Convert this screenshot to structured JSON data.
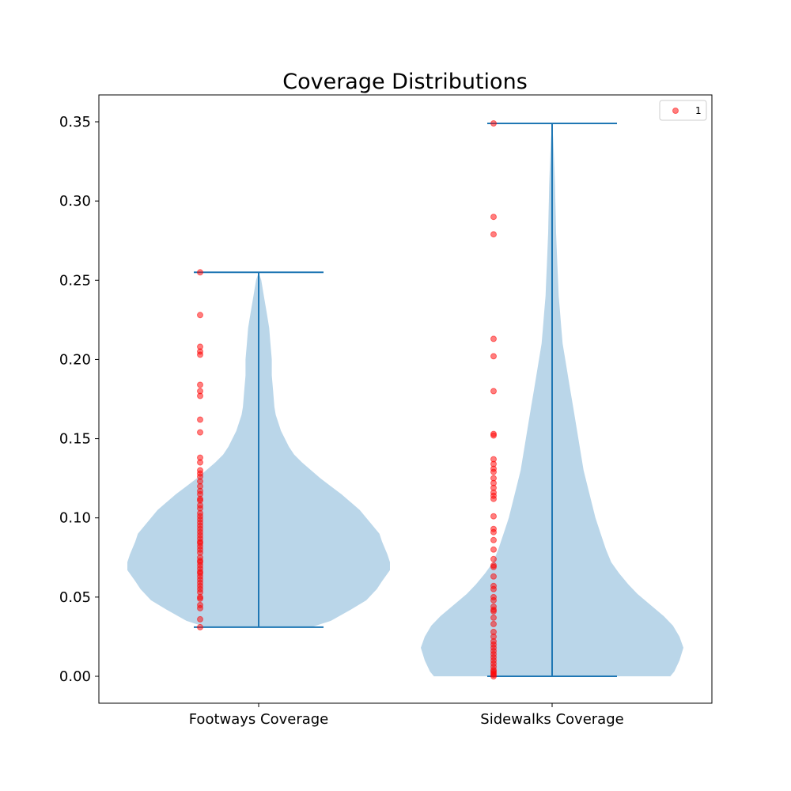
{
  "chart_data": {
    "type": "violin",
    "title": "Coverage Distributions",
    "xlabel": "",
    "ylabel": "",
    "ylim": [
      -0.017,
      0.365
    ],
    "yticks": [
      0.0,
      0.05,
      0.1,
      0.15,
      0.2,
      0.25,
      0.3,
      0.35
    ],
    "ytick_labels": [
      "0.00",
      "0.05",
      "0.10",
      "0.15",
      "0.20",
      "0.25",
      "0.30",
      "0.35"
    ],
    "categories": [
      "Footways Coverage",
      "Sidewalks Coverage"
    ],
    "colors": {
      "violin_fill": "#bad6e9",
      "violin_lines": "#1f77b4",
      "points": "#ff0000"
    },
    "legend": {
      "position": "top-right",
      "entries": [
        {
          "label": "1",
          "marker": "red circle"
        }
      ]
    },
    "violins": [
      {
        "name": "Footways Coverage",
        "min": 0.031,
        "max": 0.255,
        "density_profile": [
          [
            0.031,
            0.4
          ],
          [
            0.035,
            0.55
          ],
          [
            0.042,
            0.7
          ],
          [
            0.048,
            0.82
          ],
          [
            0.055,
            0.9
          ],
          [
            0.06,
            0.94
          ],
          [
            0.067,
            1.0
          ],
          [
            0.072,
            1.0
          ],
          [
            0.077,
            0.98
          ],
          [
            0.085,
            0.94
          ],
          [
            0.09,
            0.92
          ],
          [
            0.095,
            0.87
          ],
          [
            0.1,
            0.82
          ],
          [
            0.105,
            0.77
          ],
          [
            0.11,
            0.7
          ],
          [
            0.115,
            0.63
          ],
          [
            0.12,
            0.55
          ],
          [
            0.125,
            0.47
          ],
          [
            0.13,
            0.4
          ],
          [
            0.135,
            0.33
          ],
          [
            0.14,
            0.27
          ],
          [
            0.145,
            0.23
          ],
          [
            0.15,
            0.2
          ],
          [
            0.155,
            0.17
          ],
          [
            0.16,
            0.15
          ],
          [
            0.165,
            0.13
          ],
          [
            0.17,
            0.12
          ],
          [
            0.18,
            0.11
          ],
          [
            0.19,
            0.1
          ],
          [
            0.2,
            0.1
          ],
          [
            0.21,
            0.09
          ],
          [
            0.22,
            0.08
          ],
          [
            0.23,
            0.06
          ],
          [
            0.24,
            0.04
          ],
          [
            0.25,
            0.02
          ],
          [
            0.255,
            0.0
          ]
        ]
      },
      {
        "name": "Sidewalks Coverage",
        "min": 0.0,
        "max": 0.349,
        "density_profile": [
          [
            0.0,
            0.9
          ],
          [
            0.003,
            0.93
          ],
          [
            0.01,
            0.97
          ],
          [
            0.018,
            1.0
          ],
          [
            0.025,
            0.97
          ],
          [
            0.032,
            0.92
          ],
          [
            0.038,
            0.85
          ],
          [
            0.045,
            0.75
          ],
          [
            0.052,
            0.65
          ],
          [
            0.058,
            0.58
          ],
          [
            0.065,
            0.51
          ],
          [
            0.072,
            0.45
          ],
          [
            0.08,
            0.41
          ],
          [
            0.09,
            0.37
          ],
          [
            0.1,
            0.33
          ],
          [
            0.11,
            0.3
          ],
          [
            0.12,
            0.27
          ],
          [
            0.13,
            0.24
          ],
          [
            0.14,
            0.22
          ],
          [
            0.15,
            0.2
          ],
          [
            0.16,
            0.18
          ],
          [
            0.17,
            0.16
          ],
          [
            0.18,
            0.14
          ],
          [
            0.19,
            0.12
          ],
          [
            0.2,
            0.1
          ],
          [
            0.21,
            0.08
          ],
          [
            0.22,
            0.07
          ],
          [
            0.23,
            0.06
          ],
          [
            0.24,
            0.05
          ],
          [
            0.25,
            0.045
          ],
          [
            0.26,
            0.04
          ],
          [
            0.27,
            0.035
          ],
          [
            0.28,
            0.03
          ],
          [
            0.29,
            0.028
          ],
          [
            0.3,
            0.025
          ],
          [
            0.31,
            0.022
          ],
          [
            0.32,
            0.018
          ],
          [
            0.33,
            0.013
          ],
          [
            0.34,
            0.008
          ],
          [
            0.349,
            0.0
          ]
        ]
      }
    ],
    "points": [
      {
        "category": "Footways Coverage",
        "values": [
          0.031,
          0.036,
          0.043,
          0.045,
          0.049,
          0.05,
          0.053,
          0.055,
          0.057,
          0.059,
          0.061,
          0.063,
          0.065,
          0.066,
          0.068,
          0.07,
          0.072,
          0.073,
          0.075,
          0.078,
          0.08,
          0.082,
          0.084,
          0.085,
          0.087,
          0.089,
          0.091,
          0.093,
          0.095,
          0.097,
          0.099,
          0.101,
          0.103,
          0.106,
          0.108,
          0.111,
          0.112,
          0.115,
          0.117,
          0.12,
          0.123,
          0.126,
          0.128,
          0.13,
          0.135,
          0.138,
          0.154,
          0.162,
          0.177,
          0.18,
          0.184,
          0.203,
          0.205,
          0.208,
          0.228,
          0.255
        ]
      },
      {
        "category": "Sidewalks Coverage",
        "values": [
          0.0,
          0.001,
          0.002,
          0.003,
          0.004,
          0.006,
          0.008,
          0.01,
          0.012,
          0.014,
          0.016,
          0.018,
          0.02,
          0.022,
          0.025,
          0.028,
          0.033,
          0.037,
          0.041,
          0.042,
          0.044,
          0.048,
          0.05,
          0.055,
          0.057,
          0.063,
          0.069,
          0.07,
          0.074,
          0.08,
          0.086,
          0.091,
          0.093,
          0.101,
          0.112,
          0.114,
          0.116,
          0.119,
          0.122,
          0.125,
          0.129,
          0.131,
          0.134,
          0.137,
          0.152,
          0.153,
          0.18,
          0.202,
          0.213,
          0.279,
          0.29,
          0.349
        ]
      }
    ]
  }
}
